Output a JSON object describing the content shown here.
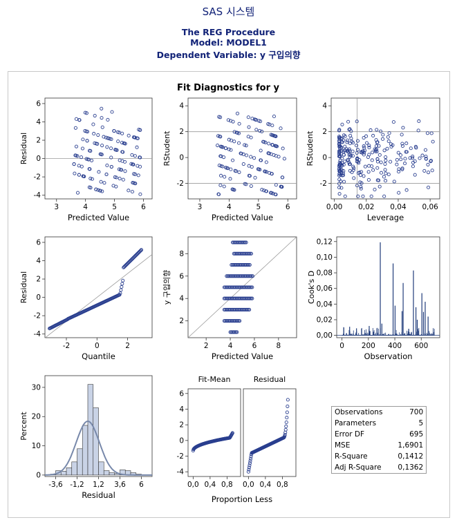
{
  "header": {
    "title": "SAS 시스템",
    "procedure": "The REG Procedure",
    "model": "Model: MODEL1",
    "dependent": "Dependent Variable: y 구입의향"
  },
  "panel_title": "Fit Diagnostics for y",
  "stats": [
    {
      "label": "Observations",
      "value": "700"
    },
    {
      "label": "Parameters",
      "value": "5"
    },
    {
      "label": "Error DF",
      "value": "695"
    },
    {
      "label": "MSE",
      "value": "1,6901"
    },
    {
      "label": "R-Square",
      "value": "0,1412"
    },
    {
      "label": "Adj R-Square",
      "value": "0,1362"
    }
  ],
  "colors": {
    "marker": "#2a3f8f",
    "bar": "#1f3b7a",
    "hist_fill": "#c9d3e6",
    "curve": "#7788aa",
    "ref": "#999999"
  },
  "chart_data": [
    {
      "type": "scatter",
      "id": "residual_vs_predicted",
      "xlabel": "Predicted Value",
      "ylabel": "Residual",
      "xlim": [
        2.6,
        6.3
      ],
      "ylim": [
        -4.4,
        6.6
      ],
      "xticks": [
        3,
        4,
        5,
        6
      ],
      "yticks": [
        -4,
        -2,
        0,
        2,
        4,
        6
      ],
      "reference_lines": {
        "y": [
          0
        ]
      },
      "bands": {
        "slope": -1,
        "intercepts": [
          -2,
          -1,
          0,
          1,
          2,
          3,
          4,
          5,
          6,
          7,
          8,
          9,
          10
        ],
        "x_range": [
          3.6,
          5.9
        ]
      }
    },
    {
      "type": "scatter",
      "id": "rstudent_vs_predicted",
      "xlabel": "Predicted Value",
      "ylabel": "RStudent",
      "xlim": [
        2.6,
        6.3
      ],
      "ylim": [
        -3.2,
        4.6
      ],
      "xticks": [
        3,
        4,
        5,
        6
      ],
      "yticks": [
        -2,
        0,
        2,
        4
      ],
      "reference_lines": {
        "y": [
          -2,
          2
        ]
      },
      "bands": {
        "slope": -0.78,
        "intercepts": [
          -1.5,
          -0.75,
          0,
          0.75,
          1.5,
          2.25,
          3.0,
          3.75,
          4.5,
          5.25,
          6.0,
          6.75,
          7.5
        ],
        "x_range": [
          3.6,
          5.9
        ]
      }
    },
    {
      "type": "scatter",
      "id": "rstudent_vs_leverage",
      "xlabel": "Leverage",
      "ylabel": "RStudent",
      "xlim": [
        -0.002,
        0.066
      ],
      "ylim": [
        -3.2,
        4.6
      ],
      "xticks": [
        0.0,
        0.02,
        0.04,
        0.06
      ],
      "xtick_labels": [
        "0,00",
        "0,02",
        "0,04",
        "0,06"
      ],
      "yticks": [
        -2,
        0,
        2,
        4
      ],
      "reference_lines": {
        "y": [
          -2,
          2
        ],
        "x": [
          0.0143
        ]
      }
    },
    {
      "type": "scatter",
      "id": "qq_plot",
      "xlabel": "Quantile",
      "ylabel": "Residual",
      "xlim": [
        -3.4,
        3.6
      ],
      "ylim": [
        -4.4,
        6.6
      ],
      "xticks": [
        -2,
        0,
        2
      ],
      "yticks": [
        -4,
        -2,
        0,
        2,
        4,
        6
      ],
      "reference_line": {
        "slope": 1.3,
        "intercept": 0
      }
    },
    {
      "type": "scatter",
      "id": "observed_vs_predicted",
      "xlabel": "Predicted Value",
      "ylabel": "y 구입의향",
      "xlim": [
        0.5,
        9.5
      ],
      "ylim": [
        0.5,
        9.5
      ],
      "xticks": [
        2,
        4,
        6,
        8
      ],
      "yticks": [
        2,
        4,
        6,
        8
      ],
      "reference_line": {
        "slope": 1,
        "intercept": 0
      },
      "levels": [
        1,
        2,
        3,
        4,
        5,
        6,
        7,
        8,
        9
      ]
    },
    {
      "type": "bar",
      "id": "cooks_d",
      "xlabel": "Observation",
      "ylabel": "Cook's D",
      "xlim": [
        -40,
        740
      ],
      "ylim": [
        -0.003,
        0.126
      ],
      "xticks": [
        0,
        200,
        400,
        600
      ],
      "yticks": [
        0.0,
        0.02,
        0.04,
        0.06,
        0.08,
        0.1,
        0.12
      ],
      "ytick_labels": [
        "0,00",
        "0,02",
        "0,04",
        "0,06",
        "0,08",
        "0,10",
        "0,12"
      ],
      "spikes": [
        [
          290,
          0.119
        ],
        [
          387,
          0.092
        ],
        [
          541,
          0.083
        ],
        [
          463,
          0.067
        ],
        [
          605,
          0.054
        ],
        [
          630,
          0.043
        ],
        [
          402,
          0.038
        ],
        [
          560,
          0.036
        ],
        [
          455,
          0.031
        ],
        [
          652,
          0.024
        ],
        [
          617,
          0.03
        ],
        [
          58,
          0.011
        ],
        [
          206,
          0.012
        ],
        [
          110,
          0.009
        ],
        [
          302,
          0.015
        ],
        [
          570,
          0.02
        ]
      ]
    },
    {
      "type": "bar",
      "id": "residual_histogram",
      "xlabel": "Residual",
      "ylabel": "Percent",
      "xlim": [
        -4.8,
        7.2
      ],
      "ylim": [
        -0.5,
        34
      ],
      "xticks": [
        -3.6,
        -1.2,
        1.2,
        3.6,
        6
      ],
      "xtick_labels": [
        "-3,6",
        "-1,2",
        "1,2",
        "3,6",
        "6"
      ],
      "yticks": [
        0,
        10,
        20,
        30
      ],
      "bin_width": 0.6,
      "bin_starts": [
        -4.2,
        -3.6,
        -3.0,
        -2.4,
        -1.8,
        -1.2,
        -0.6,
        0.0,
        0.6,
        1.2,
        1.8,
        2.4,
        3.0,
        3.6,
        4.2,
        4.8,
        5.4
      ],
      "percents": [
        0.3,
        1.5,
        1.3,
        2.5,
        4.5,
        9.0,
        17.0,
        31.0,
        23.0,
        4.5,
        1.5,
        0.8,
        0.5,
        1.8,
        1.5,
        0.8,
        0.3
      ],
      "normal_curve": {
        "mean": 0,
        "sd": 1.3
      }
    },
    {
      "type": "scatter",
      "id": "rf_plot",
      "panels": [
        "Fit-Mean",
        "Residual"
      ],
      "xlabel": "Proportion Less",
      "ylabel": "",
      "xlim": [
        -0.12,
        1.12
      ],
      "ylim": [
        -4.6,
        6.6
      ],
      "xticks": [
        0.0,
        0.4,
        0.8
      ],
      "xtick_labels": [
        "0,0",
        "0,4",
        "0,8"
      ],
      "yticks": [
        -4,
        -2,
        0,
        2,
        4,
        6
      ]
    }
  ]
}
